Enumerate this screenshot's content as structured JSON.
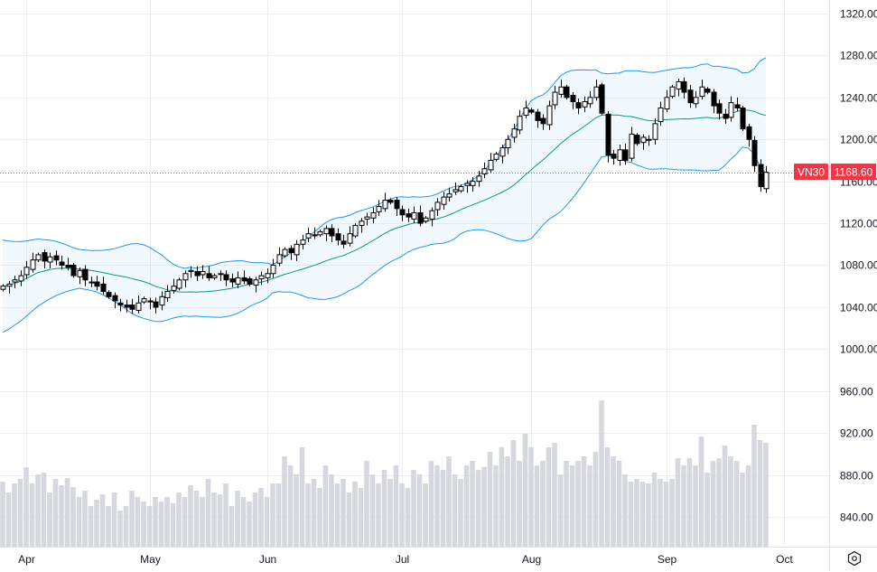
{
  "chart_data": {
    "type": "candlestick",
    "symbol": "VN30",
    "last_price": 1168.6,
    "last_price_label": "1168.60",
    "colors": {
      "up_body": "#ffffff",
      "candle": "#000000",
      "band": "#2196f3",
      "basis": "#089981",
      "band_fill": "#2196f3",
      "volume": "#d1d4dc",
      "last_price": "#f23645",
      "grid": "#eceef2"
    },
    "indicators": [
      "Bollinger Bands (20, 2)",
      "Volume"
    ],
    "y_ticks": [
      1320,
      1280,
      1240,
      1200,
      1160,
      1120,
      1080,
      1040,
      1000,
      960,
      920,
      880,
      840
    ],
    "y_tick_labels": [
      "1320.00",
      "1280.00",
      "1240.00",
      "1200.00",
      "1160.00",
      "1120.00",
      "1080.00",
      "1040.00",
      "1000.00",
      "960.00",
      "920.00",
      "880.00",
      "840.00"
    ],
    "x_labels": [
      {
        "label": "Apr",
        "index": 4
      },
      {
        "label": "May",
        "index": 25
      },
      {
        "label": "Jun",
        "index": 45
      },
      {
        "label": "Jul",
        "index": 68
      },
      {
        "label": "Aug",
        "index": 90
      },
      {
        "label": "Sep",
        "index": 113
      },
      {
        "label": "Oct",
        "index": 133
      }
    ],
    "close": [
      1060,
      1062,
      1066,
      1070,
      1078,
      1085,
      1090,
      1084,
      1088,
      1085,
      1080,
      1078,
      1070,
      1075,
      1066,
      1064,
      1060,
      1055,
      1050,
      1046,
      1042,
      1040,
      1038,
      1044,
      1048,
      1045,
      1040,
      1050,
      1055,
      1060,
      1066,
      1072,
      1075,
      1070,
      1074,
      1068,
      1070,
      1072,
      1066,
      1064,
      1068,
      1065,
      1062,
      1066,
      1070,
      1072,
      1080,
      1090,
      1095,
      1092,
      1100,
      1104,
      1110,
      1108,
      1112,
      1115,
      1108,
      1104,
      1100,
      1110,
      1118,
      1122,
      1126,
      1130,
      1136,
      1142,
      1140,
      1134,
      1128,
      1126,
      1130,
      1120,
      1125,
      1132,
      1140,
      1145,
      1148,
      1152,
      1155,
      1158,
      1160,
      1165,
      1172,
      1180,
      1186,
      1192,
      1200,
      1210,
      1222,
      1230,
      1226,
      1218,
      1215,
      1232,
      1245,
      1250,
      1240,
      1236,
      1230,
      1236,
      1240,
      1250,
      1225,
      1185,
      1182,
      1190,
      1180,
      1205,
      1196,
      1202,
      1200,
      1215,
      1230,
      1240,
      1250,
      1255,
      1245,
      1235,
      1240,
      1250,
      1245,
      1232,
      1225,
      1220,
      1235,
      1230,
      1210,
      1200,
      1175,
      1155,
      1168.6
    ],
    "volume": [
      72,
      60,
      70,
      75,
      88,
      70,
      80,
      82,
      60,
      75,
      68,
      76,
      66,
      55,
      62,
      45,
      52,
      58,
      45,
      60,
      40,
      45,
      62,
      55,
      50,
      45,
      55,
      50,
      55,
      48,
      60,
      55,
      68,
      62,
      55,
      75,
      60,
      58,
      70,
      45,
      62,
      55,
      50,
      60,
      65,
      55,
      70,
      70,
      100,
      90,
      80,
      110,
      70,
      75,
      65,
      90,
      80,
      70,
      75,
      60,
      72,
      65,
      95,
      80,
      70,
      85,
      75,
      90,
      70,
      65,
      85,
      80,
      70,
      95,
      90,
      85,
      100,
      80,
      75,
      90,
      95,
      85,
      88,
      105,
      90,
      110,
      100,
      118,
      95,
      125,
      110,
      90,
      95,
      110,
      115,
      80,
      95,
      90,
      95,
      100,
      90,
      105,
      162,
      110,
      100,
      95,
      80,
      72,
      75,
      72,
      70,
      82,
      75,
      72,
      75,
      98,
      90,
      98,
      90,
      122,
      82,
      95,
      98,
      112,
      100,
      95,
      82,
      90,
      135,
      118,
      115
    ]
  },
  "settings_icon": "hexagon-gear-icon"
}
